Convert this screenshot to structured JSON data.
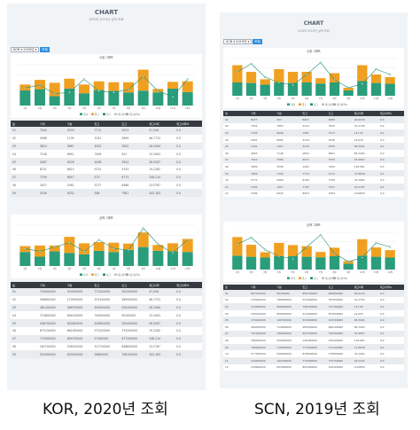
{
  "colors": {
    "bar_green": "#2a9d7a",
    "bar_orange": "#f0a020",
    "line": "#1f8f78",
    "header": "#343a40"
  },
  "left": {
    "title": "CHART",
    "subtitle": "KOR의 2020년 실적 조회",
    "select_value": "KOR ▾ 2020년 ▾",
    "button": "조회",
    "caption": "KOR, 2020년 조회",
    "chart1": {
      "title": "수량 그래프",
      "legend": [
        "가량",
        "입고",
        "출고",
        "재고이력",
        "재고이력%"
      ],
      "categories": [
        "1월",
        "2월",
        "3월",
        "4월",
        "5월",
        "6월",
        "7월",
        "8월",
        "9월",
        "10월",
        "11월",
        "12월"
      ],
      "green": [
        5.2,
        5.6,
        3.2,
        5.8,
        4.2,
        5.3,
        5.0,
        4.5,
        5.1,
        4.5,
        5.8,
        4.6
      ],
      "orange": [
        2.0,
        3.2,
        4.6,
        3.4,
        3.0,
        3.0,
        3.0,
        3.5,
        7.2,
        1.2,
        2.3,
        3.7
      ],
      "line": [
        6.0,
        7.0,
        4.0,
        4.5,
        9.0,
        5.0,
        4.5,
        5.5,
        10.0,
        5.0,
        3.0,
        9.0
      ],
      "ylim": [
        0,
        14
      ]
    },
    "table1": {
      "headers": [
        "월",
        "가격",
        "가량",
        "입고",
        "출고",
        "재고이력",
        "재고이력%"
      ],
      "rows": [
        [
          "01",
          "7540",
          "9293",
          "7712",
          "5023",
          "57,206",
          "0.0"
        ],
        [
          "02",
          "5966",
          "1709",
          "3741",
          "5699",
          "46.7723",
          "0.0"
        ],
        [
          "03",
          "3814",
          "3867",
          "4902",
          "2902",
          "26.2464",
          "0.0"
        ],
        [
          "04",
          "7146",
          "6941",
          "7409",
          "901",
          "15.3403",
          "0.0"
        ],
        [
          "05",
          "4087",
          "6526",
          "4496",
          "3504",
          "26.3267",
          "0.0"
        ],
        [
          "06",
          "8751",
          "8615",
          "9731",
          "3743",
          "19.2282",
          "0.0"
        ],
        [
          "07",
          "7749",
          "6947",
          "573",
          "6773",
          "248.214",
          "0.0"
        ],
        [
          "08",
          "1627",
          "2561",
          "5277",
          "6468",
          "23.5787",
          "0.0"
        ],
        [
          "09",
          "5526",
          "6332",
          "586",
          "7981",
          "343.183",
          "0.0"
        ]
      ]
    },
    "chart2": {
      "title": "금액 그래프",
      "legend": [
        "가격",
        "입고",
        "출고",
        "재고이력",
        "재고이력%"
      ],
      "categories": [
        "1월",
        "2월",
        "3월",
        "4월",
        "5월",
        "6월",
        "7월",
        "8월",
        "9월",
        "10월",
        "11월",
        "12월"
      ],
      "green": [
        4.8,
        3.2,
        5.0,
        4.5,
        4.0,
        5.2,
        4.8,
        5.5,
        6.5,
        5.2,
        5.0,
        4.8
      ],
      "orange": [
        2.0,
        3.8,
        2.0,
        5.5,
        3.8,
        3.0,
        3.2,
        2.2,
        5.0,
        2.0,
        2.8,
        4.5
      ],
      "line": [
        6.0,
        5.0,
        6.5,
        8.0,
        5.0,
        9.0,
        6.0,
        5.5,
        13.0,
        7.5,
        4.5,
        9.0
      ],
      "ylim": [
        0,
        14
      ]
    },
    "table2": {
      "headers": [
        "월",
        "가격",
        "가량",
        "입고",
        "출고",
        "재고이력",
        "재고이력%"
      ],
      "rows": [
        [
          "01",
          "750400000",
          "929300000",
          "771200000",
          "502300000",
          "57,206",
          "0.0"
        ],
        [
          "02",
          "596600000",
          "170900000",
          "374100000",
          "569900000",
          "46.7723",
          "0.0"
        ],
        [
          "03",
          "381400000",
          "386700000",
          "490200000",
          "290200000",
          "26.2464",
          "0.0"
        ],
        [
          "04",
          "714600000",
          "694100000",
          "740900000",
          "90100000",
          "15.3403",
          "0.0"
        ],
        [
          "05",
          "408700000",
          "652600000",
          "449600000",
          "350400000",
          "26.3267",
          "0.0"
        ],
        [
          "06",
          "875100000",
          "861500000",
          "973100000",
          "374300000",
          "19.2282",
          "0.0"
        ],
        [
          "07",
          "774900000",
          "694700000",
          "57300000",
          "677300000",
          "248.214",
          "0.0"
        ],
        [
          "08",
          "162700000",
          "256100000",
          "527700000",
          "646800000",
          "23.5787",
          "0.0"
        ],
        [
          "09",
          "552600000",
          "633200000",
          "58600000",
          "798100000",
          "343.183",
          "0.0"
        ]
      ]
    }
  },
  "right": {
    "title": "CHART",
    "subtitle": "SCN의 2019년 실적 조회",
    "select_value": "SCN ▾ 2019년 ▾",
    "button": "조회",
    "caption": "SCN, 2019년 조회",
    "chart1": {
      "title": "수량 그래프",
      "legend": [
        "가량",
        "입고",
        "출고",
        "재고이력",
        "재고이력%"
      ],
      "categories": [
        "1월",
        "2월",
        "3월",
        "4월",
        "5월",
        "6월",
        "7월",
        "8월",
        "9월",
        "10월",
        "11월",
        "12월"
      ],
      "green": [
        5.0,
        4.8,
        4.2,
        5.0,
        4.8,
        5.0,
        4.6,
        5.0,
        2.0,
        5.5,
        4.8,
        4.5
      ],
      "orange": [
        6.5,
        4.2,
        2.0,
        5.0,
        4.2,
        4.0,
        2.0,
        3.5,
        1.0,
        6.0,
        3.2,
        2.5
      ],
      "line": [
        9.0,
        12.0,
        7.0,
        5.0,
        4.0,
        8.0,
        12.5,
        6.0,
        3.0,
        4.5,
        10.0,
        8.0
      ],
      "ylim": [
        0,
        14
      ]
    },
    "table1": {
      "headers": [
        "월",
        "가격",
        "가량",
        "입고",
        "출고",
        "재고이력",
        "재고이력%"
      ],
      "rows": [
        [
          "01",
          "8977",
          "907",
          "8847",
          "9080",
          "26.6234",
          "0.0"
        ],
        [
          "02",
          "3352",
          "7863",
          "5224",
          "7835",
          "31.2795",
          "0.0"
        ],
        [
          "03",
          "7235",
          "9698",
          "7987",
          "7317",
          "117.55",
          "0.0"
        ],
        [
          "04",
          "2001",
          "8065",
          "4129",
          "3536",
          "14.625",
          "0.0"
        ],
        [
          "05",
          "2761",
          "1407",
          "3230",
          "2325",
          "28.3641",
          "0.0"
        ],
        [
          "06",
          "4663",
          "7148",
          "2852",
          "9661",
          "83.2463",
          "0.0"
        ],
        [
          "07",
          "7010",
          "7966",
          "9037",
          "7303",
          "15.9807",
          "0.0"
        ],
        [
          "08",
          "3850",
          "2558",
          "1463",
          "7000",
          "118.681",
          "0.0"
        ],
        [
          "09",
          "7809",
          "7190",
          "7770",
          "1711",
          "71.8958",
          "0.0"
        ],
        [
          "10",
          "5773",
          "5969",
          "8390",
          "7789",
          "33.1682",
          "0.0"
        ],
        [
          "11",
          "1303",
          "1627",
          "7745",
          "7327",
          "18.2331",
          "0.0"
        ],
        [
          "12",
          "2309",
          "6930",
          "8954",
          "1993",
          "4.00859",
          "0.0"
        ]
      ]
    },
    "chart2": {
      "title": "금액 그래프",
      "legend": [
        "가격",
        "입고",
        "출고",
        "재고이력",
        "재고이력%"
      ],
      "categories": [
        "1월",
        "2월",
        "3월",
        "4월",
        "5월",
        "6월",
        "7월",
        "8월",
        "9월",
        "10월",
        "11월",
        "12월"
      ],
      "green": [
        5.2,
        4.8,
        4.5,
        5.0,
        5.0,
        4.8,
        4.6,
        5.0,
        2.2,
        5.2,
        4.8,
        4.5
      ],
      "orange": [
        7.0,
        4.5,
        2.0,
        5.0,
        4.2,
        4.0,
        2.0,
        3.2,
        1.0,
        6.2,
        3.5,
        2.8
      ],
      "line": [
        9.5,
        12.0,
        7.5,
        5.0,
        4.0,
        8.5,
        13.0,
        6.0,
        3.0,
        4.5,
        10.0,
        8.5
      ],
      "ylim": [
        0,
        14
      ]
    },
    "table2": {
      "headers": [
        "월",
        "가격",
        "가량",
        "입고",
        "출고",
        "재고이력",
        "재고이력%"
      ],
      "rows": [
        [
          "01",
          "897700000",
          "90700000",
          "884700000",
          "908000000",
          "26.6234",
          "0.0"
        ],
        [
          "02",
          "335200000",
          "786300000",
          "522400000",
          "783500000",
          "31.2795",
          "0.0"
        ],
        [
          "03",
          "723500000",
          "969800000",
          "798700000",
          "731700000",
          "117.55",
          "0.0"
        ],
        [
          "04",
          "200100000",
          "806500000",
          "412900000",
          "353600000",
          "14.625",
          "0.0"
        ],
        [
          "05",
          "276100000",
          "140700000",
          "323000000",
          "232500000",
          "28.3641",
          "0.0"
        ],
        [
          "06",
          "466300000",
          "714800000",
          "285200000",
          "966100000",
          "83.2463",
          "0.0"
        ],
        [
          "07",
          "701000000",
          "796600000",
          "903700000",
          "730300000",
          "15.9807",
          "0.0"
        ],
        [
          "08",
          "385000000",
          "255800000",
          "146300000",
          "700000000",
          "118.681",
          "0.0"
        ],
        [
          "09",
          "780900000",
          "719000000",
          "777000000",
          "171100000",
          "71.8958",
          "0.0"
        ],
        [
          "10",
          "577300000",
          "596900000",
          "839000000",
          "778900000",
          "33.1682",
          "0.0"
        ],
        [
          "11",
          "130300000",
          "162700000",
          "774500000",
          "732700000",
          "18.2331",
          "0.0"
        ],
        [
          "12",
          "230900000",
          "693000000",
          "895400000",
          "199300000",
          "4.00859",
          "0.0"
        ]
      ]
    }
  }
}
